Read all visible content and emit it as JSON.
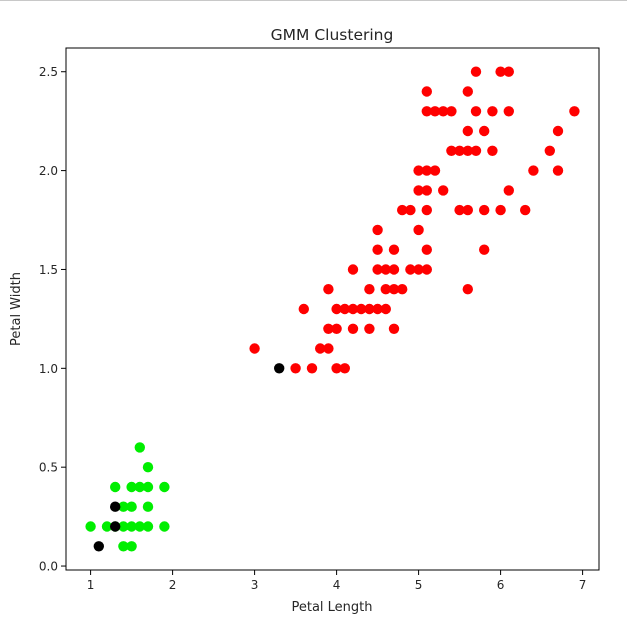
{
  "chart_data": {
    "type": "scatter",
    "title": "GMM Clustering",
    "xlabel": "Petal Length",
    "ylabel": "Petal Width",
    "xlim": [
      0.7,
      7.2
    ],
    "ylim": [
      -0.02,
      2.62
    ],
    "xticks": [
      1,
      2,
      3,
      4,
      5,
      6,
      7
    ],
    "yticks": [
      0.0,
      0.5,
      1.0,
      1.5,
      2.0,
      2.5
    ],
    "xtick_labels": [
      "1",
      "2",
      "3",
      "4",
      "5",
      "6",
      "7"
    ],
    "ytick_labels": [
      "0.0",
      "0.5",
      "1.0",
      "1.5",
      "2.0",
      "2.5"
    ],
    "grid": false,
    "legend": "none",
    "series": [
      {
        "color": "#00ee00",
        "points": [
          [
            1.0,
            0.2
          ],
          [
            1.2,
            0.2
          ],
          [
            1.3,
            0.2
          ],
          [
            1.4,
            0.2
          ],
          [
            1.5,
            0.2
          ],
          [
            1.6,
            0.2
          ],
          [
            1.7,
            0.2
          ],
          [
            1.9,
            0.2
          ],
          [
            1.4,
            0.1
          ],
          [
            1.5,
            0.1
          ],
          [
            1.4,
            0.3
          ],
          [
            1.5,
            0.3
          ],
          [
            1.7,
            0.3
          ],
          [
            1.3,
            0.4
          ],
          [
            1.5,
            0.4
          ],
          [
            1.6,
            0.4
          ],
          [
            1.7,
            0.4
          ],
          [
            1.9,
            0.4
          ],
          [
            1.7,
            0.5
          ],
          [
            1.6,
            0.6
          ]
        ]
      },
      {
        "color": "#000000",
        "points": [
          [
            1.1,
            0.1
          ],
          [
            1.3,
            0.2
          ],
          [
            1.3,
            0.3
          ],
          [
            3.3,
            1.0
          ]
        ]
      },
      {
        "color": "#ff0000",
        "points": [
          [
            3.0,
            1.1
          ],
          [
            3.5,
            1.0
          ],
          [
            3.7,
            1.0
          ],
          [
            4.0,
            1.0
          ],
          [
            4.1,
            1.0
          ],
          [
            3.8,
            1.1
          ],
          [
            3.9,
            1.1
          ],
          [
            3.9,
            1.2
          ],
          [
            4.0,
            1.2
          ],
          [
            4.2,
            1.2
          ],
          [
            4.4,
            1.2
          ],
          [
            4.7,
            1.2
          ],
          [
            3.6,
            1.3
          ],
          [
            4.0,
            1.3
          ],
          [
            4.1,
            1.3
          ],
          [
            4.2,
            1.3
          ],
          [
            4.3,
            1.3
          ],
          [
            4.4,
            1.3
          ],
          [
            4.5,
            1.3
          ],
          [
            4.6,
            1.3
          ],
          [
            3.9,
            1.4
          ],
          [
            4.4,
            1.4
          ],
          [
            4.6,
            1.4
          ],
          [
            4.7,
            1.4
          ],
          [
            4.8,
            1.4
          ],
          [
            5.6,
            1.4
          ],
          [
            4.2,
            1.5
          ],
          [
            4.5,
            1.5
          ],
          [
            4.6,
            1.5
          ],
          [
            4.7,
            1.5
          ],
          [
            4.9,
            1.5
          ],
          [
            5.0,
            1.5
          ],
          [
            5.1,
            1.5
          ],
          [
            4.5,
            1.6
          ],
          [
            4.7,
            1.6
          ],
          [
            5.1,
            1.6
          ],
          [
            5.8,
            1.6
          ],
          [
            4.5,
            1.7
          ],
          [
            5.0,
            1.7
          ],
          [
            4.8,
            1.8
          ],
          [
            4.9,
            1.8
          ],
          [
            5.1,
            1.8
          ],
          [
            5.5,
            1.8
          ],
          [
            5.6,
            1.8
          ],
          [
            5.8,
            1.8
          ],
          [
            6.0,
            1.8
          ],
          [
            6.3,
            1.8
          ],
          [
            5.0,
            1.9
          ],
          [
            5.1,
            1.9
          ],
          [
            5.3,
            1.9
          ],
          [
            6.1,
            1.9
          ],
          [
            5.0,
            2.0
          ],
          [
            5.1,
            2.0
          ],
          [
            5.2,
            2.0
          ],
          [
            6.4,
            2.0
          ],
          [
            6.7,
            2.0
          ],
          [
            5.4,
            2.1
          ],
          [
            5.5,
            2.1
          ],
          [
            5.6,
            2.1
          ],
          [
            5.7,
            2.1
          ],
          [
            5.9,
            2.1
          ],
          [
            6.6,
            2.1
          ],
          [
            5.6,
            2.2
          ],
          [
            5.8,
            2.2
          ],
          [
            6.7,
            2.2
          ],
          [
            5.1,
            2.3
          ],
          [
            5.2,
            2.3
          ],
          [
            5.3,
            2.3
          ],
          [
            5.4,
            2.3
          ],
          [
            5.7,
            2.3
          ],
          [
            5.9,
            2.3
          ],
          [
            6.1,
            2.3
          ],
          [
            6.9,
            2.3
          ],
          [
            5.1,
            2.4
          ],
          [
            5.6,
            2.4
          ],
          [
            5.7,
            2.5
          ],
          [
            6.0,
            2.5
          ],
          [
            6.1,
            2.5
          ]
        ]
      }
    ]
  }
}
